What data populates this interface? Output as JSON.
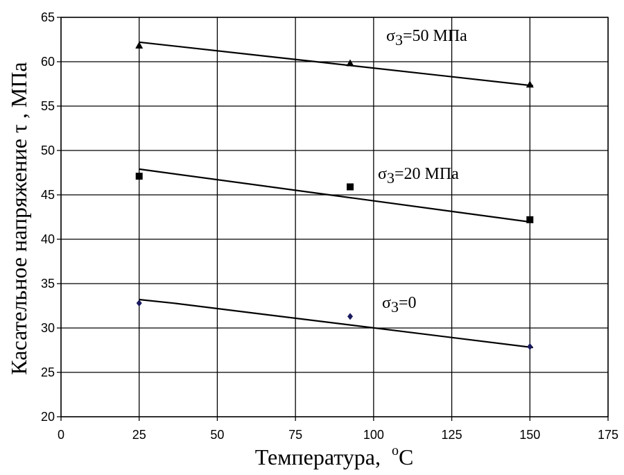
{
  "chart_data": {
    "type": "scatter",
    "title": "",
    "xlabel": "Температура,",
    "xlabel_unit": "oC",
    "ylabel": "Касательное напряжение τ , МПа",
    "xlim": [
      0,
      175
    ],
    "ylim": [
      20,
      65
    ],
    "xticks": [
      0,
      25,
      50,
      75,
      100,
      125,
      150,
      175
    ],
    "yticks": [
      20,
      25,
      30,
      35,
      40,
      45,
      50,
      55,
      60,
      65
    ],
    "grid": "vertical and horizontal at major ticks",
    "legend": "none; series labels placed inline on the right",
    "series": [
      {
        "name": "σ3=50 МПа",
        "label_prefix": "σ",
        "label_sub": "3",
        "label_suffix": "=50 МПа",
        "marker": "triangle",
        "color": "#000000",
        "points": [
          [
            25,
            61.8
          ],
          [
            92.5,
            59.8
          ],
          [
            150,
            57.4
          ]
        ],
        "trend": [
          [
            25,
            62.2
          ],
          [
            151,
            57.3
          ]
        ]
      },
      {
        "name": "σ3=20 МПа",
        "label_prefix": "σ",
        "label_sub": "3",
        "label_suffix": "=20 МПа",
        "marker": "square",
        "color": "#000000",
        "points": [
          [
            25,
            47.1
          ],
          [
            92.5,
            45.9
          ],
          [
            150,
            42.2
          ]
        ],
        "trend": [
          [
            25,
            47.9
          ],
          [
            151,
            41.9
          ]
        ]
      },
      {
        "name": "σ3=0",
        "label_prefix": "σ",
        "label_sub": "3",
        "label_suffix": "=0",
        "marker": "diamond",
        "color": "#1a1a5e",
        "points": [
          [
            25,
            32.8
          ],
          [
            92.5,
            31.3
          ],
          [
            150,
            27.9
          ]
        ],
        "trend": [
          [
            25,
            33.2
          ],
          [
            36,
            32.8
          ],
          [
            151,
            27.8
          ]
        ]
      }
    ]
  }
}
